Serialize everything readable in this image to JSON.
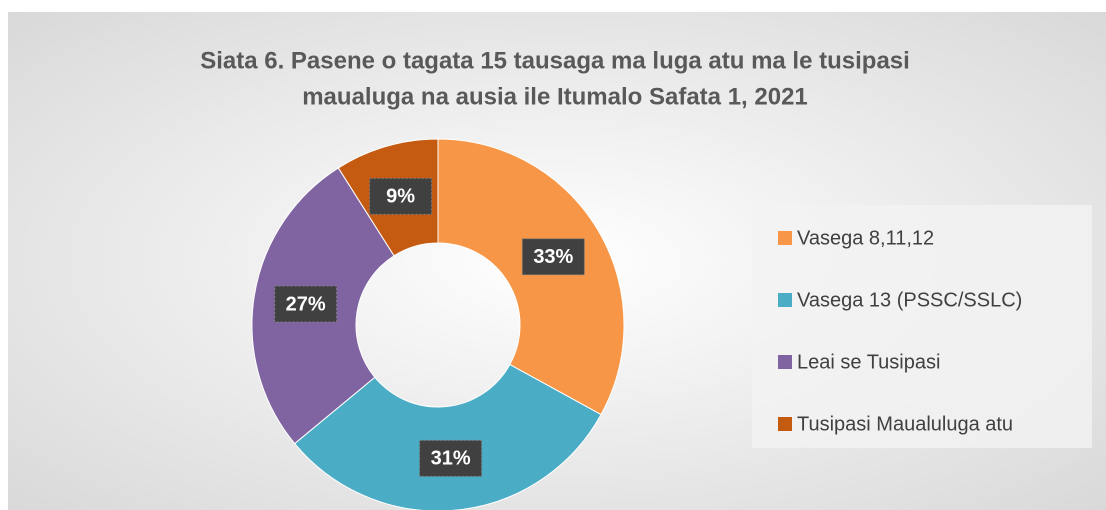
{
  "chart_data": {
    "type": "pie",
    "title": [
      "Siata 6. Pasene o tagata 15 tausaga ma luga atu ma le tusipasi",
      "maualuga na ausia ile Itumalo Safata 1, 2021"
    ],
    "categories": [
      "Vasega 8,11,12",
      "Vasega 13 (PSSC/SSLC)",
      "Leai se Tusipasi",
      "Tusipasi Maualuluga atu"
    ],
    "values": [
      33,
      31,
      27,
      9
    ],
    "value_labels": [
      "33%",
      "31%",
      "27%",
      "9%"
    ],
    "colors": [
      "#F79646",
      "#4BACC6",
      "#8064A2",
      "#C55A11"
    ],
    "legend": "right"
  }
}
